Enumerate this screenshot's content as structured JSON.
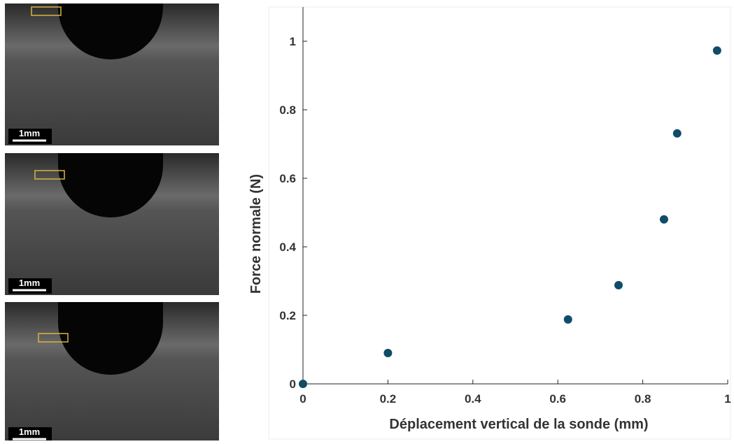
{
  "panels": [
    {
      "scale_label": "1mm"
    },
    {
      "scale_label": "1mm"
    },
    {
      "scale_label": "1mm"
    }
  ],
  "chart_data": {
    "type": "scatter",
    "xlabel": "Déplacement vertical de la sonde (mm)",
    "ylabel": "Force normale (N)",
    "x": [
      0,
      0.2,
      0.624,
      0.743,
      0.85,
      0.881,
      0.975
    ],
    "y": [
      0,
      0.09,
      0.188,
      0.288,
      0.48,
      0.731,
      0.973
    ],
    "color": "#0f4c68",
    "xlim": [
      0,
      1
    ],
    "ylim": [
      0,
      1.1
    ],
    "xticks": [
      0,
      0.2,
      0.4,
      0.6,
      0.8,
      1
    ],
    "yticks": [
      0,
      0.2,
      0.4,
      0.6,
      0.8,
      1
    ]
  }
}
